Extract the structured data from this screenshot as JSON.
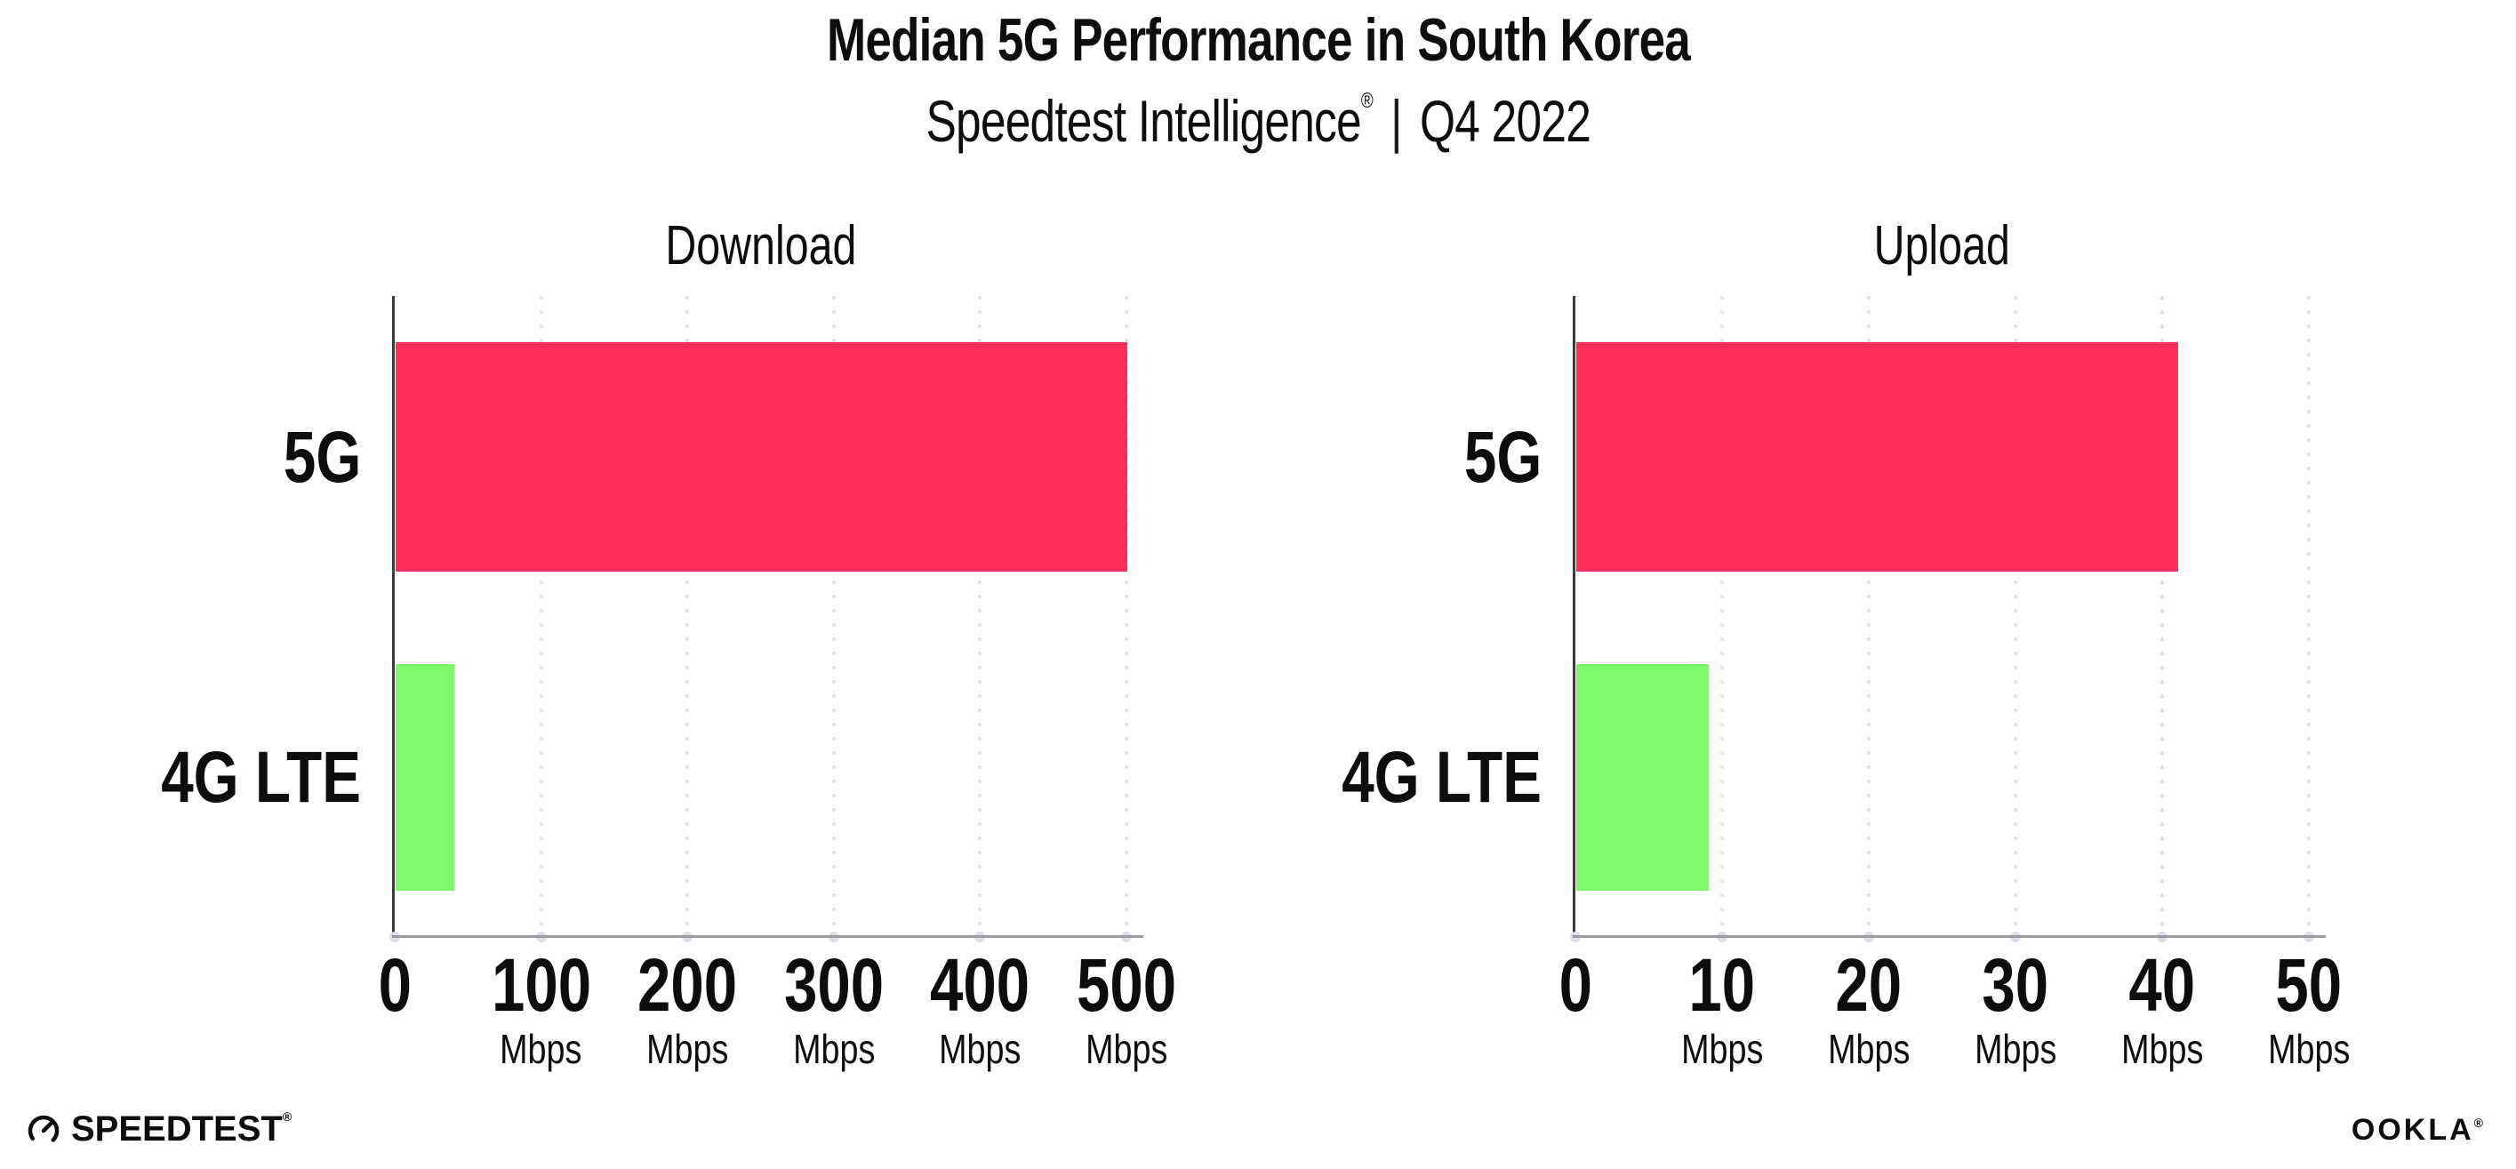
{
  "header": {
    "title": "Median 5G Performance in South Korea",
    "subtitle_brand": "Speedtest Intelligence",
    "subtitle_reg": "®",
    "subtitle_separator": "|",
    "subtitle_period": "Q4 2022"
  },
  "chart_data": [
    {
      "type": "bar",
      "orientation": "horizontal",
      "title": "Download",
      "categories": [
        "5G",
        "4G LTE"
      ],
      "values": [
        500,
        40
      ],
      "unit": "Mbps",
      "xlim": [
        0,
        500
      ],
      "xticks": [
        0,
        100,
        200,
        300,
        400,
        500
      ],
      "tick_unit_label": "Mbps",
      "bar_colors": [
        "#FC2D58",
        "#7DFB68"
      ],
      "grid": "dotted-vertical",
      "legend": "none"
    },
    {
      "type": "bar",
      "orientation": "horizontal",
      "title": "Upload",
      "categories": [
        "5G",
        "4G LTE"
      ],
      "values": [
        41,
        9
      ],
      "unit": "Mbps",
      "xlim": [
        0,
        50
      ],
      "xticks": [
        0,
        10,
        20,
        30,
        40,
        50
      ],
      "tick_unit_label": "Mbps",
      "bar_colors": [
        "#FC2D58",
        "#7DFB68"
      ],
      "grid": "dotted-vertical",
      "legend": "none"
    }
  ],
  "footer": {
    "speedtest_logo_text": "SPEEDTEST",
    "speedtest_mark": "®",
    "ookla_logo_text": "OOKLA",
    "ookla_mark": "®"
  },
  "colors": {
    "bar_5g": "#FC2D58",
    "bar_4g_lte": "#7DFB68",
    "grid_dots": "#E4E4EE",
    "x_axis": "#9C9CA0",
    "y_axis": "#3B3B3D",
    "text": "#0D0D0D"
  }
}
